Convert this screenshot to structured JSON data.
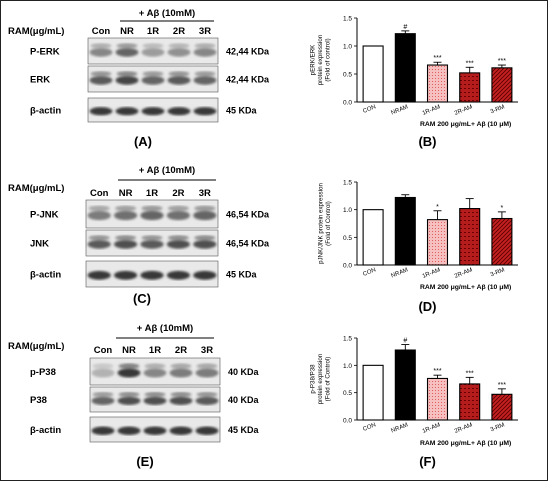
{
  "panels": [
    {
      "letter": "(A)",
      "header": "+ Aβ (10mM)",
      "ram_label": "RAM(μg/mL)",
      "lanes": [
        "Con",
        "NR",
        "1R",
        "2R",
        "3R"
      ],
      "rows": [
        {
          "name": "P-ERK",
          "kda": "42,44 KDa"
        },
        {
          "name": "ERK",
          "kda": "42,44 KDa"
        },
        {
          "name": "β-actin",
          "kda": "45 KDa"
        }
      ]
    },
    {
      "letter": "(C)",
      "header": "+ Aβ (10mM)",
      "ram_label": "RAM(μg/mL)",
      "lanes": [
        "Con",
        "NR",
        "1R",
        "2R",
        "3R"
      ],
      "rows": [
        {
          "name": "P-JNK",
          "kda": "46,54 KDa"
        },
        {
          "name": "JNK",
          "kda": "46,54 KDa"
        },
        {
          "name": "β-actin",
          "kda": "45 KDa"
        }
      ]
    },
    {
      "letter": "(E)",
      "header": "+ Aβ (10mM)",
      "ram_label": "RAM(μg/mL)",
      "lanes": [
        "Con",
        "NR",
        "1R",
        "2R",
        "3R"
      ],
      "rows": [
        {
          "name": "p-P38",
          "kda": "40 KDa"
        },
        {
          "name": "P38",
          "kda": "40 KDa"
        },
        {
          "name": "β-actin",
          "kda": "45 KDa"
        }
      ]
    }
  ],
  "colors": {
    "con": "#ffffff",
    "nram": "#000000",
    "r1": "#f4a3a3",
    "r2": "#b01818",
    "r3": "#c01a1a"
  },
  "chart_data": [
    {
      "type": "bar",
      "letter": "(B)",
      "ylabel": "pERK/ERK\nprotein expression\n(Fold of control)",
      "categories": [
        "CON",
        "NRAM",
        "1R-AM",
        "2R-AM",
        "3-RM"
      ],
      "values": [
        1.0,
        1.22,
        0.66,
        0.52,
        0.61
      ],
      "errors": [
        0.0,
        0.05,
        0.05,
        0.1,
        0.05
      ],
      "significance": [
        "",
        "#",
        "***",
        "***",
        "***"
      ],
      "group_label": "RAM 200 μg/mL+ Aβ (10 μM)",
      "ylim": [
        0,
        1.5
      ],
      "yticks": [
        "0.0",
        "0.5",
        "1.0",
        "1.5"
      ]
    },
    {
      "type": "bar",
      "letter": "(D)",
      "ylabel": "pJNK/JNK protein expression\n(Fold of Control)",
      "categories": [
        "CON",
        "NRAM",
        "1R-AM",
        "2R-AM",
        "3-RM"
      ],
      "values": [
        1.0,
        1.22,
        0.82,
        1.02,
        0.84
      ],
      "errors": [
        0.0,
        0.05,
        0.16,
        0.18,
        0.12
      ],
      "significance": [
        "",
        "",
        "*",
        "",
        "*"
      ],
      "group_label": "RAM 200 μg/mL+ Aβ (10 μM)",
      "ylim": [
        0,
        1.5
      ],
      "yticks": [
        "0.0",
        "0.5",
        "1.0",
        "1.5"
      ]
    },
    {
      "type": "bar",
      "letter": "(F)",
      "ylabel": "p-P38/P38\nprotein expression\n(Fold of Control)",
      "categories": [
        "CON",
        "NRAM",
        "1R-AM",
        "2R-AM",
        "3-RM"
      ],
      "values": [
        1.0,
        1.28,
        0.76,
        0.66,
        0.47
      ],
      "errors": [
        0.0,
        0.1,
        0.06,
        0.12,
        0.1
      ],
      "significance": [
        "",
        "#",
        "***",
        "***",
        "***"
      ],
      "group_label": "RAM 200 μg/mL+ Aβ (10 μM)",
      "ylim": [
        0,
        1.5
      ],
      "yticks": [
        "0.0",
        "0.5",
        "1.0",
        "1.5"
      ]
    }
  ]
}
